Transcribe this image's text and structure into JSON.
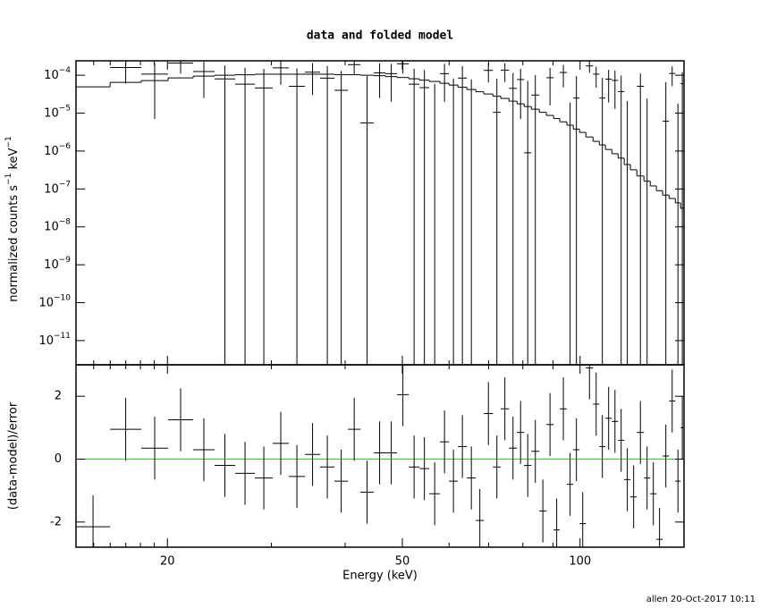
{
  "chart_data": {
    "type": "spectrum",
    "title": "data and folded model",
    "xlabel": "Energy (keV)",
    "ylabel_parts": [
      "normalized counts s",
      "−1",
      " keV",
      "−1"
    ],
    "residual_ylabel": "(data-model)/error",
    "footer": "allen 20-Oct-2017 10:11",
    "xscale": "log",
    "xlim": [
      14,
      150
    ],
    "xticks": [
      20,
      50,
      100
    ],
    "xminor": [
      15,
      16,
      17,
      18,
      19,
      30,
      40,
      60,
      70,
      80,
      90
    ],
    "yscale": "log",
    "ylim": [
      2.3e-12,
      0.00024
    ],
    "yticks": [
      {
        "value": 0.0001,
        "label": "10",
        "exponent": "−4"
      },
      {
        "value": 1e-05,
        "label": "10",
        "exponent": "−5"
      },
      {
        "value": 1e-06,
        "label": "10",
        "exponent": "−6"
      },
      {
        "value": 1e-07,
        "label": "10",
        "exponent": "−7"
      },
      {
        "value": 1e-08,
        "label": "10",
        "exponent": "−8"
      },
      {
        "value": 1e-09,
        "label": "10",
        "exponent": "−9"
      },
      {
        "value": 1e-10,
        "label": "10",
        "exponent": "−10"
      },
      {
        "value": 1e-11,
        "label": "10",
        "exponent": "−11"
      }
    ],
    "y2lim": [
      -2.8,
      3
    ],
    "y2ticks": [
      -2,
      0,
      2
    ],
    "data_color": "#000000",
    "model_color": "#000000",
    "reference_line": {
      "value": 0,
      "color": "#33cc33"
    },
    "energy_edges": [
      14.0,
      15.99,
      18.06,
      20.05,
      22.11,
      24.04,
      26.05,
      28.13,
      30.16,
      32.11,
      34.2,
      36.28,
      38.37,
      40.44,
      42.46,
      44.73,
      46.81,
      48.98,
      51.26,
      53.45,
      55.55,
      57.92,
      59.97,
      62.1,
      64.3,
      66.6,
      68.7,
      71.2,
      73.4,
      75.8,
      78.2,
      80.4,
      82.7,
      85.3,
      87.7,
      90.2,
      92.4,
      95.0,
      97.4,
      99.8,
      102.3,
      105.2,
      107.8,
      110.4,
      113.2,
      116.0,
      118.8,
      121.7,
      124.8,
      128.3,
      131.5,
      134.7,
      138.0,
      141.5,
      145.0,
      148.0,
      150
    ],
    "values": [
      -0.000166,
      0.00016,
      0.000107,
      0.00021,
      0.000125,
      8e-05,
      5.8e-05,
      4.6e-05,
      0.000156,
      5.1e-05,
      0.00012,
      8.4e-05,
      4e-05,
      0.00019,
      5.5e-06,
      0.000115,
      0.00011,
      0.0002,
      5.8e-05,
      4.7e-05,
      -3.1e-05,
      0.00011,
      -8e-06,
      8.4e-05,
      -1.2e-05,
      -0.0001,
      0.000134,
      1.05e-05,
      0.000136,
      4.5e-05,
      7.7e-05,
      9e-07,
      3e-05,
      -0.000105,
      8.6e-05,
      -0.00015,
      0.000118,
      -5.1e-05,
      2.5e-05,
      -0.00014,
      0.000176,
      0.000107,
      2.5e-05,
      7.9e-05,
      7.3e-05,
      3.7e-05,
      -3.9e-05,
      -7.2e-05,
      5.1e-05,
      -3.6e-05,
      -6.6e-05,
      -0.000153,
      6.1e-06,
      0.000111,
      -4.2e-05,
      6e-05
    ],
    "errors": [
      0.0001,
      0.0001,
      0.0001,
      0.0001,
      0.0001,
      0.0001,
      0.0001,
      0.0001,
      0.0001,
      0.0001,
      9e-05,
      9e-05,
      9e-05,
      9e-05,
      9e-05,
      9e-05,
      9e-05,
      9e-05,
      9e-05,
      9e-05,
      9e-05,
      9e-05,
      9e-05,
      9e-05,
      9e-05,
      7e-05,
      7e-05,
      7e-05,
      7e-05,
      7e-05,
      7e-05,
      7e-05,
      7e-05,
      7e-05,
      7e-05,
      7e-05,
      7e-05,
      7e-05,
      7e-05,
      7e-05,
      6e-05,
      6e-05,
      6e-05,
      6e-05,
      6e-05,
      6e-05,
      6e-05,
      6e-05,
      6e-05,
      6e-05,
      6e-05,
      6e-05,
      6e-05,
      6e-05,
      6e-05,
      6e-05
    ],
    "model": [
      4.93e-05,
      6.47e-05,
      7.21e-05,
      8.49e-05,
      9.47e-05,
      0.0001,
      0.000103,
      0.000106,
      0.000106,
      0.000106,
      0.000106,
      0.000106,
      0.000103,
      0.000103,
      0.0001,
      9.7e-05,
      9.2e-05,
      8.7e-05,
      8.05e-05,
      7.4e-05,
      6.84e-05,
      6.13e-05,
      5.5e-05,
      4.8e-05,
      4.2e-05,
      3.66e-05,
      3.2e-05,
      2.8e-05,
      2.44e-05,
      2.07e-05,
      1.76e-05,
      1.49e-05,
      1.27e-05,
      1.05e-05,
      8.7e-06,
      7.2e-06,
      5.9e-06,
      4.8e-06,
      3.8e-06,
      3.1e-06,
      2.35e-06,
      1.8e-06,
      1.45e-06,
      1.1e-06,
      8.5e-07,
      6.5e-07,
      4.4e-07,
      3.2e-07,
      2.2e-07,
      1.6e-07,
      1.2e-07,
      9e-08,
      6.9e-08,
      5.6e-08,
      4.3e-08,
      3.1e-08
    ],
    "residuals": [
      -2.15,
      0.95,
      0.35,
      1.25,
      0.3,
      -0.2,
      -0.45,
      -0.6,
      0.5,
      -0.55,
      0.15,
      -0.25,
      -0.7,
      0.95,
      -1.05,
      0.2,
      0.2,
      2.05,
      -0.25,
      -0.3,
      -1.1,
      0.55,
      -0.7,
      0.4,
      -0.6,
      -1.95,
      1.45,
      -0.25,
      1.6,
      0.35,
      0.85,
      -0.2,
      0.25,
      -1.65,
      1.1,
      -2.25,
      1.6,
      -0.8,
      0.3,
      -2.05,
      2.9,
      1.75,
      0.4,
      1.3,
      1.2,
      0.6,
      -0.65,
      -1.2,
      0.85,
      -0.6,
      -1.1,
      -2.55,
      0.1,
      1.85,
      -0.7,
      1.0
    ],
    "residual_errors": [
      1,
      1,
      1,
      1,
      1,
      1,
      1,
      1,
      1,
      1,
      1,
      1,
      1,
      1,
      1,
      1,
      1,
      1,
      1,
      1,
      1,
      1,
      1,
      1,
      1,
      1,
      1,
      1,
      1,
      1,
      1,
      1,
      1,
      1,
      1,
      1,
      1,
      1,
      1,
      1,
      1,
      1,
      1,
      1,
      1,
      1,
      1,
      1,
      1,
      1,
      1,
      1,
      1,
      1,
      1,
      1
    ]
  }
}
